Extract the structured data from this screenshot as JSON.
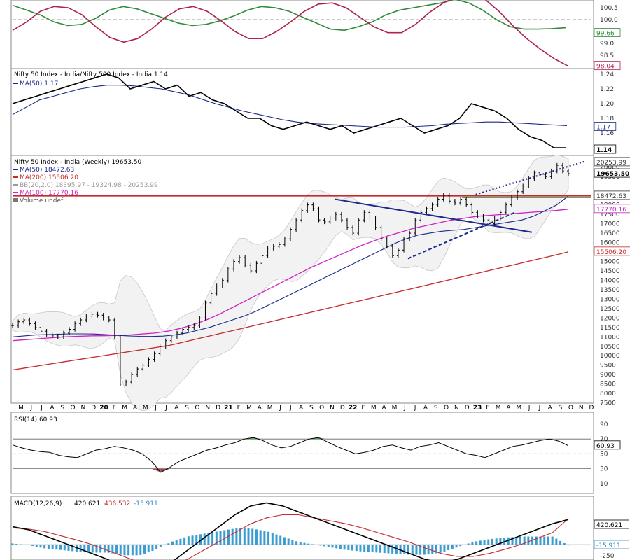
{
  "chart_data": [
    {
      "panel": "rs_oscillator",
      "type": "line",
      "y_ticks": [
        "100.5",
        "100.0",
        "99.0",
        "98.5"
      ],
      "grid": "dashed line at 100.0",
      "last_values": {
        "green": "99.66",
        "red": "98.04"
      },
      "series": [
        {
          "color": "#2f8a3a",
          "values": [
            100.6,
            100.4,
            100.2,
            99.9,
            99.75,
            99.8,
            100.05,
            100.4,
            100.55,
            100.45,
            100.25,
            100.05,
            99.85,
            99.75,
            99.8,
            99.95,
            100.15,
            100.4,
            100.55,
            100.5,
            100.35,
            100.1,
            99.85,
            99.6,
            99.55,
            99.7,
            99.9,
            100.2,
            100.4,
            100.5,
            100.6,
            100.7,
            100.85,
            100.7,
            100.4,
            100.0,
            99.7,
            99.6,
            99.6,
            99.62,
            99.66
          ]
        },
        {
          "color": "#b0224c",
          "values": [
            99.55,
            99.9,
            100.35,
            100.55,
            100.5,
            100.2,
            99.7,
            99.25,
            99.05,
            99.2,
            99.6,
            100.1,
            100.45,
            100.55,
            100.35,
            99.95,
            99.5,
            99.2,
            99.2,
            99.5,
            99.9,
            100.35,
            100.65,
            100.7,
            100.5,
            100.1,
            99.7,
            99.45,
            99.45,
            99.8,
            100.3,
            100.7,
            100.95,
            101.05,
            100.85,
            100.35,
            99.75,
            99.2,
            98.75,
            98.35,
            98.04
          ]
        }
      ]
    },
    {
      "panel": "ratio",
      "type": "line",
      "title": "Nifty 50 Index - India/Nifty 500 Index - India 1.14",
      "legend": [
        "MA(50) 1.17"
      ],
      "y_ticks": [
        "1.24",
        "1.22",
        "1.20",
        "1.18",
        "1.16"
      ],
      "labels": {
        "ma": "1.17",
        "last": "1.14"
      },
      "series": [
        {
          "name": "ratio",
          "color": "#000000",
          "values": [
            1.2,
            1.205,
            1.21,
            1.215,
            1.22,
            1.225,
            1.23,
            1.235,
            1.24,
            1.235,
            1.22,
            1.225,
            1.23,
            1.22,
            1.225,
            1.21,
            1.215,
            1.205,
            1.2,
            1.19,
            1.18,
            1.18,
            1.17,
            1.165,
            1.17,
            1.175,
            1.17,
            1.165,
            1.17,
            1.16,
            1.165,
            1.17,
            1.175,
            1.18,
            1.17,
            1.16,
            1.165,
            1.17,
            1.18,
            1.2,
            1.195,
            1.19,
            1.18,
            1.165,
            1.155,
            1.15,
            1.14,
            1.14
          ]
        },
        {
          "name": "MA(50)",
          "color": "#1c2a8a",
          "values": [
            1.185,
            1.195,
            1.205,
            1.21,
            1.215,
            1.22,
            1.223,
            1.225,
            1.225,
            1.224,
            1.222,
            1.22,
            1.216,
            1.212,
            1.206,
            1.2,
            1.195,
            1.19,
            1.186,
            1.182,
            1.178,
            1.175,
            1.173,
            1.172,
            1.171,
            1.17,
            1.169,
            1.168,
            1.168,
            1.168,
            1.169,
            1.17,
            1.172,
            1.173,
            1.174,
            1.175,
            1.175,
            1.174,
            1.173,
            1.172,
            1.171,
            1.17
          ]
        }
      ]
    },
    {
      "panel": "price",
      "type": "line",
      "title": "Nifty 50 Index - India (Weekly) 19653.50",
      "legend": [
        {
          "text": "MA(50) 18472.63",
          "color": "#1c2a8a"
        },
        {
          "text": "MA(200) 15506.20",
          "color": "#c42a2a"
        },
        {
          "text": "BB(20,2.0) 18395.97 - 19324.98 - 20253.99",
          "color": "#9a9a9a"
        },
        {
          "text": "MA(100) 17770.16",
          "color": "#d020c8"
        },
        {
          "text": "Volume undef",
          "color": "#555555"
        }
      ],
      "y_ticks": [
        "20000",
        "19500",
        "18500",
        "18000",
        "17500",
        "17000",
        "16500",
        "16000",
        "15500",
        "15000",
        "14500",
        "14000",
        "13500",
        "13000",
        "12500",
        "12000",
        "11500",
        "11000",
        "10500",
        "10000",
        "9500",
        "9000",
        "8500",
        "8000",
        "7500"
      ],
      "price_labels": [
        {
          "text": "20253.99",
          "value": 20253.99,
          "color": "#ffffff",
          "fg": "#333333"
        },
        {
          "text": "19653.50",
          "value": 19653.5,
          "color": "#ffffff",
          "fg": "#000000",
          "bold": true
        },
        {
          "text": "18472.63",
          "value": 18472.63,
          "color": "#ffffff",
          "fg": "#333333"
        },
        {
          "text": "17770.16",
          "value": 17770.16,
          "color": "#ffffff",
          "fg": "#c020c0"
        },
        {
          "text": "15506.20",
          "value": 15506.2,
          "color": "#ffffff",
          "fg": "#c42a2a"
        }
      ],
      "x_labels": [
        "M",
        "J",
        "J",
        "A",
        "S",
        "O",
        "N",
        "D",
        "20",
        "F",
        "M",
        "A",
        "M",
        "J",
        "J",
        "A",
        "S",
        "O",
        "N",
        "D",
        "21",
        "F",
        "M",
        "A",
        "M",
        "J",
        "J",
        "A",
        "S",
        "O",
        "N",
        "D",
        "22",
        "F",
        "M",
        "A",
        "M",
        "J",
        "J",
        "A",
        "S",
        "O",
        "N",
        "D",
        "23",
        "F",
        "M",
        "A",
        "M",
        "J",
        "J",
        "A",
        "S",
        "O",
        "N",
        "D"
      ],
      "close": [
        11600,
        11800,
        11900,
        11700,
        11500,
        11300,
        11100,
        11050,
        11000,
        11200,
        11400,
        11700,
        11900,
        12100,
        12200,
        12150,
        12000,
        11900,
        11000,
        8500,
        8600,
        9000,
        9300,
        9500,
        9800,
        10100,
        10500,
        10800,
        11000,
        11200,
        11400,
        11500,
        11600,
        12000,
        12800,
        13300,
        13700,
        14000,
        14600,
        15000,
        15200,
        14800,
        14500,
        14900,
        15300,
        15700,
        15800,
        15900,
        16200,
        16700,
        17200,
        17700,
        18000,
        17800,
        17200,
        17100,
        17300,
        17500,
        17200,
        16800,
        16500,
        17200,
        17600,
        17300,
        16800,
        16200,
        15800,
        15300,
        15600,
        16200,
        16500,
        17200,
        17600,
        17800,
        18000,
        18300,
        18500,
        18200,
        18100,
        18300,
        18000,
        17600,
        17400,
        17200,
        17000,
        17300,
        17600,
        18000,
        18400,
        18700,
        19000,
        19400,
        19700,
        19600,
        19500,
        19800,
        20100,
        19800,
        19653.5
      ],
      "ma50": [
        11000,
        11050,
        11100,
        11120,
        11140,
        11160,
        11160,
        11150,
        11120,
        11080,
        11050,
        11030,
        11020,
        11040,
        11100,
        11200,
        11350,
        11500,
        11700,
        11900,
        12100,
        12350,
        12650,
        12950,
        13250,
        13550,
        13850,
        14150,
        14450,
        14750,
        15050,
        15350,
        15650,
        15950,
        16200,
        16400,
        16500,
        16600,
        16650,
        16700,
        16800,
        16900,
        17000,
        17100,
        17200,
        17400,
        17700,
        18000,
        18472.63
      ],
      "ma100": [
        10800,
        10850,
        10900,
        10950,
        11000,
        11030,
        11050,
        11060,
        11070,
        11100,
        11150,
        11200,
        11300,
        11450,
        11650,
        11900,
        12200,
        12550,
        12900,
        13250,
        13600,
        13950,
        14300,
        14650,
        14950,
        15250,
        15550,
        15850,
        16100,
        16350,
        16550,
        16750,
        16900,
        17050,
        17200,
        17300,
        17400,
        17450,
        17500,
        17550,
        17600,
        17650,
        17700,
        17770.16
      ],
      "ma200": [
        9250,
        9350,
        9450,
        9550,
        9650,
        9750,
        9850,
        9950,
        10050,
        10150,
        10250,
        10350,
        10450,
        10550,
        10700,
        10850,
        11000,
        11150,
        11300,
        11450,
        11600,
        11750,
        11900,
        12050,
        12200,
        12350,
        12500,
        12650,
        12800,
        12950,
        13100,
        13250,
        13400,
        13550,
        13700,
        13850,
        14000,
        14150,
        14300,
        14450,
        14600,
        14750,
        14900,
        15050,
        15200,
        15350,
        15506.2
      ],
      "levels": [
        {
          "name": "resistance-red",
          "value": 18400,
          "color": "#c42a2a"
        },
        {
          "name": "support-green",
          "value": 18472.63,
          "color": "#2d8a2d"
        }
      ],
      "trendlines": [
        {
          "name": "falling-blue",
          "from": [
            0.557,
            18300
          ],
          "to": [
            0.897,
            16550
          ],
          "color": "#1c2a8a",
          "style": "solid"
        },
        {
          "name": "rising-dashed",
          "from": [
            0.683,
            15150
          ],
          "to": [
            0.868,
            17600
          ],
          "color": "#1c2a8a",
          "style": "dashed"
        },
        {
          "name": "upper-dotted",
          "from": [
            0.8,
            18550
          ],
          "to": [
            0.988,
            20300
          ],
          "color": "#1c2a8a",
          "style": "dotted"
        }
      ]
    },
    {
      "panel": "rsi",
      "type": "line",
      "title": "RSI(14) 60.93",
      "y_ticks": [
        "90",
        "70",
        "50",
        "30",
        "10"
      ],
      "last_label": "60.93",
      "values": [
        62,
        58,
        55,
        53,
        52,
        48,
        46,
        45,
        50,
        55,
        57,
        60,
        58,
        55,
        50,
        40,
        25,
        32,
        40,
        45,
        50,
        55,
        58,
        62,
        65,
        70,
        72,
        68,
        62,
        58,
        60,
        65,
        70,
        72,
        66,
        60,
        55,
        50,
        52,
        55,
        60,
        62,
        58,
        55,
        60,
        62,
        65,
        60,
        55,
        50,
        48,
        45,
        50,
        55,
        60,
        62,
        65,
        68,
        70,
        67,
        60.93
      ]
    },
    {
      "panel": "macd",
      "type": "line",
      "title": "MACD(12,26,9) 420.621, 436.532, -15.911",
      "title_parts": {
        "label": "MACD(12,26,9)",
        "macd": "420.621",
        "signal": "436.532",
        "hist": "-15.911"
      },
      "y_ticks": [
        "-250"
      ],
      "last_labels": {
        "macd": "420.621",
        "hist": "-15.911"
      },
      "macd": [
        300,
        250,
        150,
        50,
        -50,
        -150,
        -250,
        -400,
        -500,
        -450,
        -300,
        -100,
        100,
        300,
        500,
        650,
        700,
        650,
        550,
        450,
        350,
        250,
        150,
        50,
        -50,
        -150,
        -250,
        -300,
        -250,
        -150,
        -50,
        50,
        150,
        250,
        350,
        420.621
      ],
      "signal": [
        280,
        260,
        220,
        150,
        80,
        0,
        -100,
        -200,
        -300,
        -350,
        -350,
        -250,
        -100,
        50,
        200,
        350,
        450,
        500,
        500,
        450,
        400,
        350,
        280,
        200,
        120,
        40,
        -60,
        -150,
        -200,
        -200,
        -150,
        -80,
        0,
        100,
        200,
        436.532
      ]
    }
  ]
}
